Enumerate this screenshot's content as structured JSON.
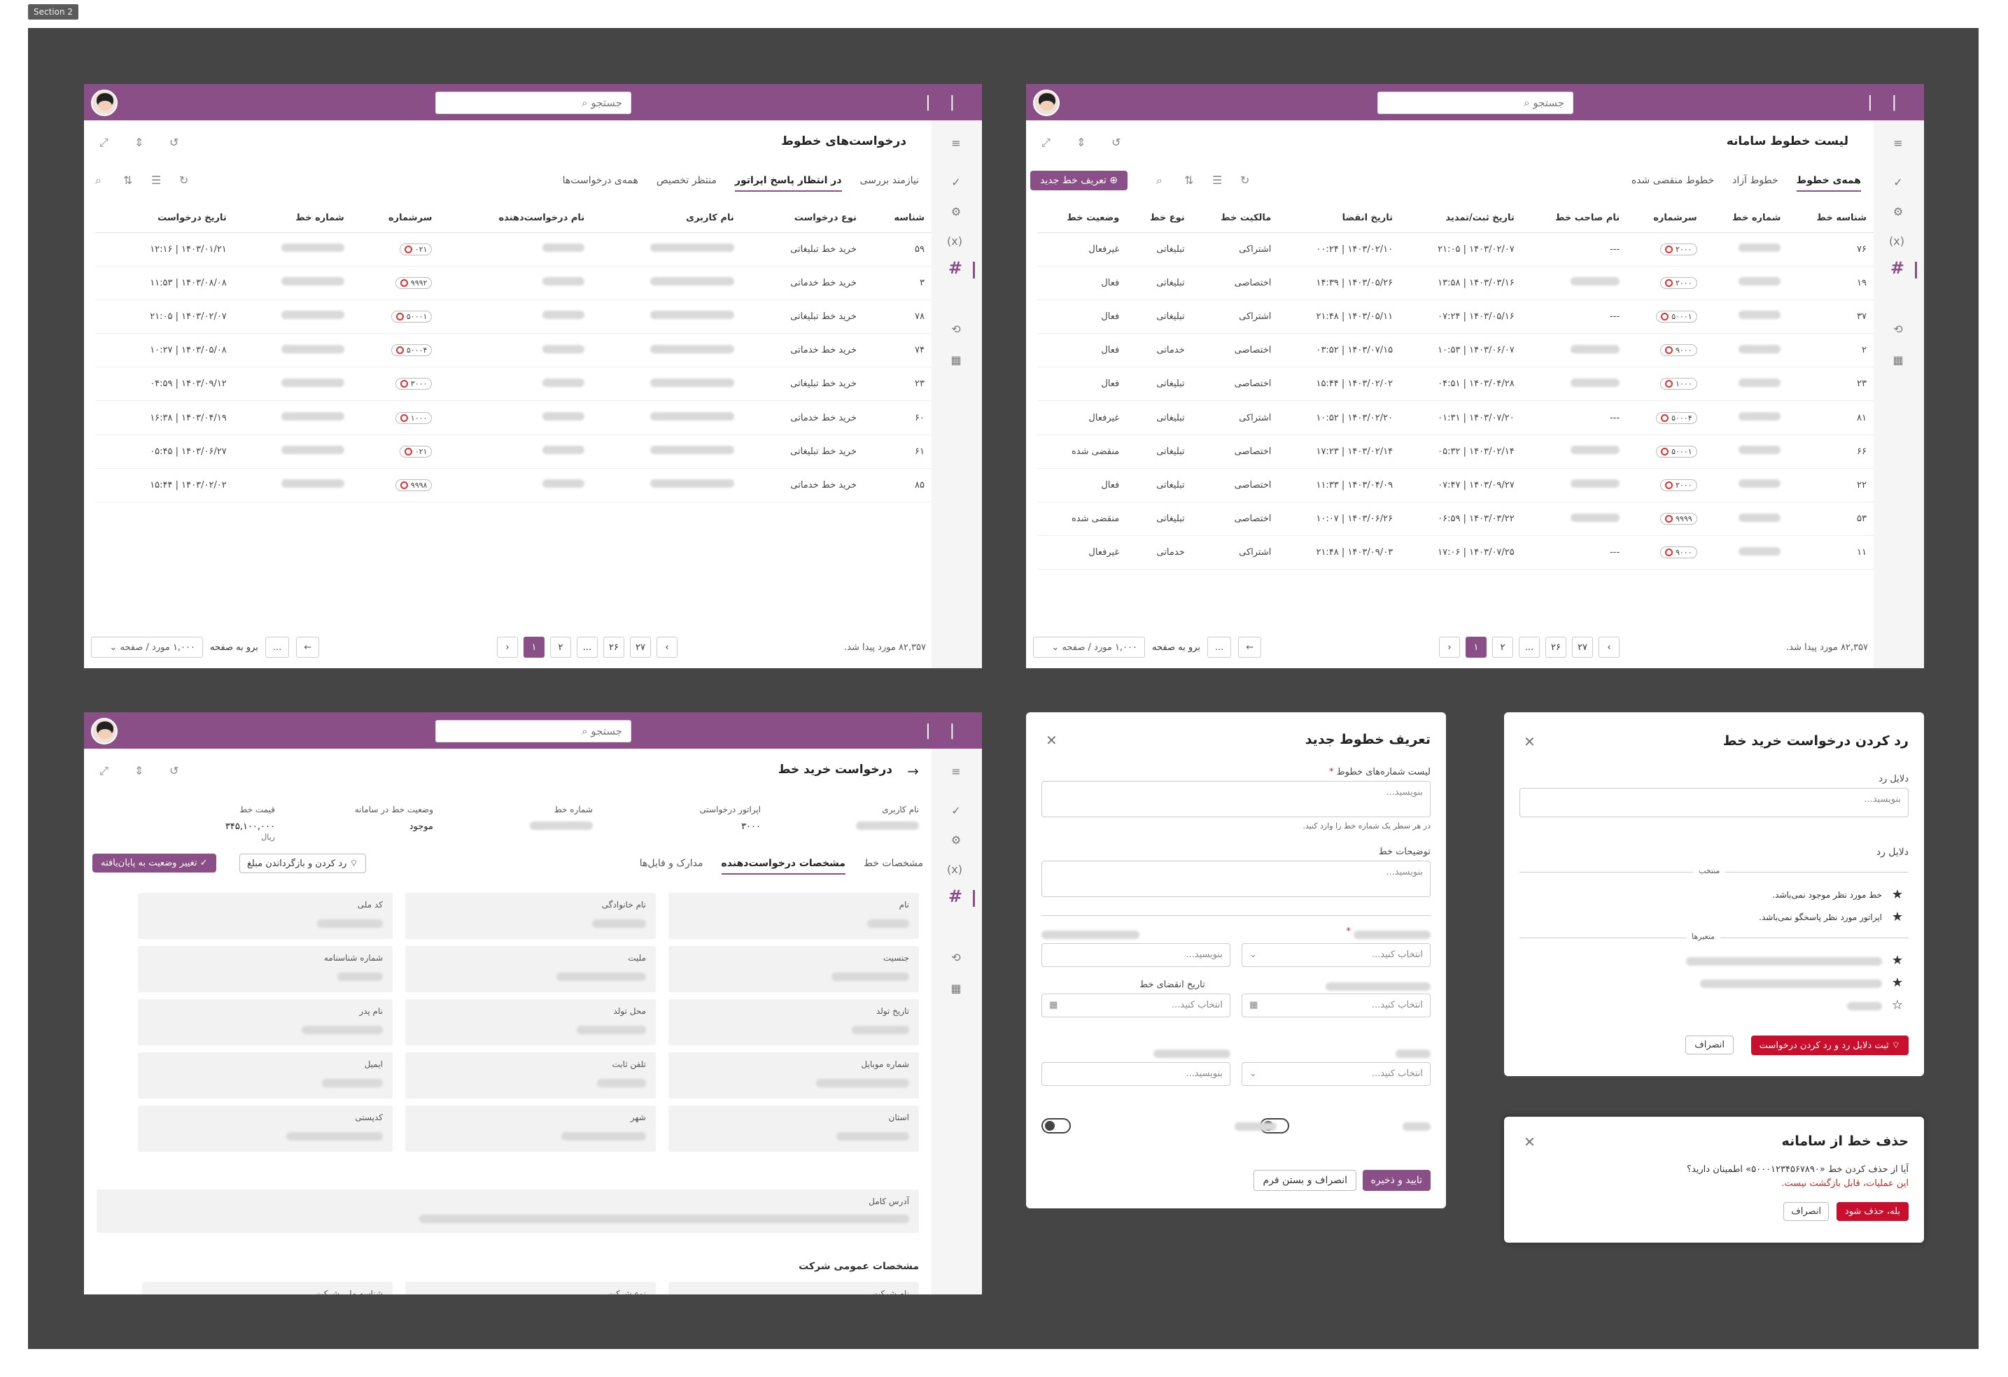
{
  "section_label": "Section 2",
  "common": {
    "search_placeholder": "جستجو",
    "logo": "| |",
    "per_page": "۱,۰۰۰ مورد / صفحه",
    "goto": "برو به صفحه",
    "goto_box": "...",
    "found": "۸۲,۳۵۷ مورد پیدا شد.",
    "pages": [
      "۱",
      "۲",
      "...",
      "۲۶",
      "۲۷"
    ]
  },
  "panel_lines": {
    "title": "لیست خطوط سامانه",
    "new_button": "تعریف خط جدید",
    "tabs": [
      "همه‌ی خطوط",
      "خطوط آزاد",
      "خطوط منقضی شده"
    ],
    "columns": [
      "شناسه خط",
      "شماره خط",
      "سرشماره",
      "نام صاحب خط",
      "تاریخ ثبت/تمدید",
      "تاریخ انقضا",
      "مالکیت خط",
      "نوع خط",
      "وضعیت خط"
    ],
    "rows": [
      {
        "id": "۷۶",
        "prefix": "۲۰۰۰",
        "owner": "---",
        "reg": "۱۴۰۳/۰۲/۰۷ | ۲۱:۰۵",
        "exp": "۱۴۰۳/۰۲/۱۰ | ۰۰:۲۴",
        "own": "اشتراکی",
        "type": "تبلیغاتی",
        "status": "غیرفعال"
      },
      {
        "id": "۱۹",
        "prefix": "۲۰۰۰",
        "owner": "",
        "reg": "۱۴۰۳/۰۳/۱۶ | ۱۳:۵۸",
        "exp": "۱۴۰۳/۰۵/۲۶ | ۱۴:۳۹",
        "own": "اختصاصی",
        "type": "تبلیغاتی",
        "status": "فعال"
      },
      {
        "id": "۳۷",
        "prefix": "۵۰۰۰۱",
        "owner": "---",
        "reg": "۱۴۰۳/۰۵/۱۶ | ۰۷:۲۴",
        "exp": "۱۴۰۳/۰۵/۱۱ | ۲۱:۴۸",
        "own": "اشتراکی",
        "type": "تبلیغاتی",
        "status": "فعال"
      },
      {
        "id": "۲",
        "prefix": "۹۰۰۰",
        "owner": "",
        "reg": "۱۴۰۳/۰۶/۰۷ | ۱۰:۵۳",
        "exp": "۱۴۰۳/۰۷/۱۵ | ۰۳:۵۲",
        "own": "اختصاصی",
        "type": "خدماتی",
        "status": "فعال"
      },
      {
        "id": "۲۳",
        "prefix": "۱۰۰۰",
        "owner": "",
        "reg": "۱۴۰۳/۰۴/۲۸ | ۰۴:۵۱",
        "exp": "۱۴۰۳/۰۲/۰۲ | ۱۵:۴۴",
        "own": "اختصاصی",
        "type": "تبلیغاتی",
        "status": "فعال"
      },
      {
        "id": "۸۱",
        "prefix": "۵۰۰۰۴",
        "owner": "---",
        "reg": "۱۴۰۳/۰۷/۲۰ | ۰۱:۳۱",
        "exp": "۱۴۰۳/۰۲/۲۰ | ۱۰:۵۲",
        "own": "اشتراکی",
        "type": "تبلیغاتی",
        "status": "غیرفعال"
      },
      {
        "id": "۶۶",
        "prefix": "۵۰۰۰۱",
        "owner": "",
        "reg": "۱۴۰۳/۰۲/۱۴ | ۰۵:۳۲",
        "exp": "۱۴۰۳/۰۲/۱۴ | ۱۷:۲۳",
        "own": "اختصاصی",
        "type": "تبلیغاتی",
        "status": "منقضی شده"
      },
      {
        "id": "۲۲",
        "prefix": "۲۰۰۰",
        "owner": "",
        "reg": "۱۴۰۳/۰۹/۲۷ | ۰۷:۴۷",
        "exp": "۱۴۰۳/۰۴/۰۹ | ۱۱:۳۳",
        "own": "اختصاصی",
        "type": "تبلیغاتی",
        "status": "فعال"
      },
      {
        "id": "۵۳",
        "prefix": "۹۹۹۹",
        "owner": "",
        "reg": "۱۴۰۳/۰۳/۲۲ | ۰۶:۵۹",
        "exp": "۱۴۰۳/۰۶/۲۶ | ۱۰:۰۷",
        "own": "اختصاصی",
        "type": "تبلیغاتی",
        "status": "منقضی شده"
      },
      {
        "id": "۱۱",
        "prefix": "۹۰۰۰",
        "owner": "---",
        "reg": "۱۴۰۳/۰۷/۲۵ | ۱۷:۰۶",
        "exp": "۱۴۰۳/۰۹/۰۳ | ۲۱:۴۸",
        "own": "اشتراکی",
        "type": "خدماتی",
        "status": "غیرفعال"
      }
    ]
  },
  "panel_requests": {
    "title": "درخواست‌های خطوط",
    "tabs": [
      "نیازمند بررسی",
      "در انتظار پاسخ اپراتور",
      "منتظر تخصیص",
      "همه‌ی درخواست‌ها"
    ],
    "columns": [
      "شناسه",
      "نوع درخواست",
      "نام کاربری",
      "نام درخواست‌دهنده",
      "سرشماره",
      "شماره خط",
      "تاریخ درخواست"
    ],
    "rows": [
      {
        "id": "۵۹",
        "type": "خرید خط تبلیغاتی",
        "prefix": "۰۲۱",
        "date": "۱۴۰۳/۰۱/۲۱ | ۱۲:۱۶"
      },
      {
        "id": "۳",
        "type": "خرید خط خدماتی",
        "prefix": "۹۹۹۲",
        "date": "۱۴۰۳/۰۸/۰۸ | ۱۱:۵۳"
      },
      {
        "id": "۷۸",
        "type": "خرید خط تبلیغاتی",
        "prefix": "۵۰۰۰۱",
        "date": "۱۴۰۳/۰۲/۰۷ | ۲۱:۰۵"
      },
      {
        "id": "۷۴",
        "type": "خرید خط خدماتی",
        "prefix": "۵۰۰۰۴",
        "date": "۱۴۰۳/۰۵/۰۸ | ۱۰:۲۷"
      },
      {
        "id": "۲۳",
        "type": "خرید خط تبلیغاتی",
        "prefix": "۳۰۰۰",
        "date": "۱۴۰۳/۰۹/۱۲ | ۰۴:۵۹"
      },
      {
        "id": "۶۰",
        "type": "خرید خط خدماتی",
        "prefix": "۱۰۰۰",
        "date": "۱۴۰۳/۰۴/۱۹ | ۱۶:۳۸"
      },
      {
        "id": "۶۱",
        "type": "خرید خط تبلیغاتی",
        "prefix": "۰۲۱",
        "date": "۱۴۰۳/۰۶/۲۷ | ۰۵:۴۵"
      },
      {
        "id": "۸۵",
        "type": "خرید خط خدماتی",
        "prefix": "۹۹۹۸",
        "date": "۱۴۰۳/۰۲/۰۲ | ۱۵:۴۴"
      }
    ]
  },
  "panel_detail": {
    "title": "درخواست خرید خط",
    "summary": [
      {
        "label": "نام کاربری",
        "value": ""
      },
      {
        "label": "اپراتور درخواستی",
        "value": "۳۰۰۰"
      },
      {
        "label": "شماره خط",
        "value": ""
      },
      {
        "label": "وضعیت خط در سامانه",
        "value": "موجود"
      },
      {
        "label": "قیمت خط",
        "value": "۳۴۵,۱۰۰,۰۰۰",
        "unit": "ریال"
      }
    ],
    "tabs": [
      "مشخصات خط",
      "مشخصات درخواست‌دهنده",
      "مدارک و فایل‌ها"
    ],
    "btn_finish": "تغییر وضعیت به پایان‌یافته",
    "btn_reject": "رد کردن و بازگرداندن مبلغ",
    "fields": [
      "نام",
      "نام خانوادگی",
      "کد ملی",
      "جنسیت",
      "ملیت",
      "شماره شناسنامه",
      "تاریخ تولد",
      "محل تولد",
      "نام پدر",
      "شماره موبایل",
      "تلفن ثابت",
      "ایمیل",
      "استان",
      "شهر",
      "کدپستی"
    ],
    "address_label": "آدرس کامل",
    "company_title": "مشخصات عمومی شرکت",
    "company_fields": [
      "نام شرکت",
      "نوع شرکت",
      "شناسه ملی شرکت"
    ]
  },
  "modal_define": {
    "title": "تعریف خطوط جدید",
    "numbers_label": "لیست شماره‌های خطوط",
    "numbers_ph": "بنویسید...",
    "numbers_hint": "در هر سطر یک شماره خط را وارد کنید.",
    "desc_label": "توضیحات خط",
    "desc_ph": "بنویسید...",
    "select_ph": "انتخاب کنید...",
    "write_ph": "بنویسید...",
    "expiry_label": "تاریخ انقضای خط",
    "cancel": "انصراف و بستن فرم",
    "save": "تایید و ذخیره"
  },
  "modal_reject": {
    "title": "رد کردن درخواست خرید خط",
    "reason_label": "دلایل رد",
    "reason_ph": "بنویسید...",
    "list_label": "دلایل رد",
    "group_selected": "منتخب",
    "selected": [
      "خط مورد نظر موجود نمی‌باشد.",
      "اپراتور مورد نظر پاسخگو نمی‌باشد."
    ],
    "group_vars": "متغیرها",
    "submit": "ثبت دلایل رد و رد کردن درخواست",
    "cancel": "انصراف"
  },
  "modal_delete": {
    "title": "حذف خط از سامانه",
    "question": "آیا از حذف کردن خط «۵۰۰۰۱۲۳۴۵۶۷۸۹۰» اطمینان دارید؟",
    "warning": "این عملیات، قابل بازگشت نیست.",
    "confirm": "بله، حذف شود",
    "cancel": "انصراف"
  },
  "colors": {
    "brand": "#8a4f86",
    "danger": "#c8102e",
    "success": "#2e9d4a",
    "canvas": "#454545"
  }
}
